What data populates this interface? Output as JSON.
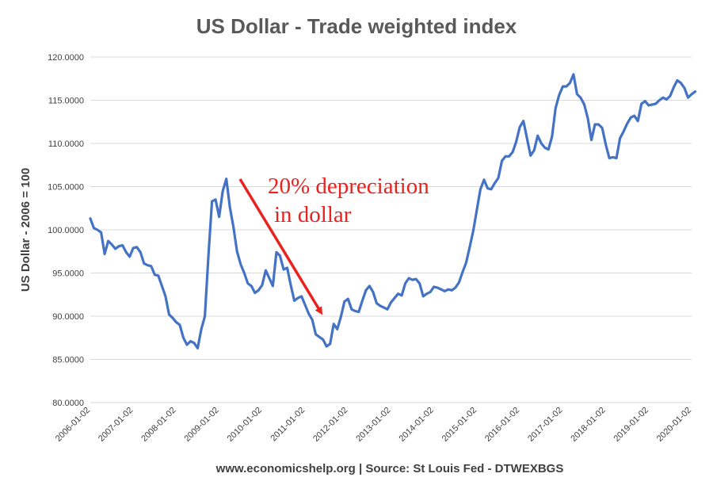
{
  "chart_data": {
    "type": "line",
    "title": "US Dollar - Trade weighted index",
    "ylabel": "US Dollar - 2006 = 100",
    "xlabel": "www.economicshelp.org | Source: St Louis Fed - DTWEXBGS",
    "ylim": [
      80,
      120
    ],
    "yticks": [
      "80.0000",
      "85.0000",
      "90.0000",
      "95.0000",
      "100.0000",
      "105.0000",
      "110.0000",
      "115.0000",
      "120.0000"
    ],
    "xticks": [
      "2006-01-02",
      "2007-01-02",
      "2008-01-02",
      "2009-01-02",
      "2010-01-02",
      "2011-01-02",
      "2012-01-02",
      "2013-01-02",
      "2014-01-02",
      "2015-01-02",
      "2016-01-02",
      "2017-01-02",
      "2018-01-02",
      "2019-01-02",
      "2020-01-02"
    ],
    "grid": true,
    "line_color": "#4472c4",
    "annotation": {
      "lines": [
        "20% depreciation",
        "in dollar"
      ],
      "color": "#e8231f"
    },
    "series": [
      {
        "x": [
          "2006-01",
          "2006-02",
          "2006-03",
          "2006-04",
          "2006-05",
          "2006-06",
          "2006-07",
          "2006-08",
          "2006-09",
          "2006-10",
          "2006-11",
          "2006-12",
          "2007-01",
          "2007-02",
          "2007-03",
          "2007-04",
          "2007-05",
          "2007-06",
          "2007-07",
          "2007-08",
          "2007-09",
          "2007-10",
          "2007-11",
          "2007-12",
          "2008-01",
          "2008-02",
          "2008-03",
          "2008-04",
          "2008-05",
          "2008-06",
          "2008-07",
          "2008-08",
          "2008-09",
          "2008-10",
          "2008-11",
          "2008-12",
          "2009-01",
          "2009-02",
          "2009-03",
          "2009-04",
          "2009-05",
          "2009-06",
          "2009-07",
          "2009-08",
          "2009-09",
          "2009-10",
          "2009-11",
          "2009-12",
          "2010-01",
          "2010-02",
          "2010-03",
          "2010-04",
          "2010-05",
          "2010-06",
          "2010-07",
          "2010-08",
          "2010-09",
          "2010-10",
          "2010-11",
          "2010-12",
          "2011-01",
          "2011-02",
          "2011-03",
          "2011-04",
          "2011-05",
          "2011-06",
          "2011-07",
          "2011-08",
          "2011-09",
          "2011-10",
          "2011-11",
          "2011-12",
          "2012-01",
          "2012-02",
          "2012-03",
          "2012-04",
          "2012-05",
          "2012-06",
          "2012-07",
          "2012-08",
          "2012-09",
          "2012-10",
          "2012-11",
          "2012-12",
          "2013-01",
          "2013-02",
          "2013-03",
          "2013-04",
          "2013-05",
          "2013-06",
          "2013-07",
          "2013-08",
          "2013-09",
          "2013-10",
          "2013-11",
          "2013-12",
          "2014-01",
          "2014-02",
          "2014-03",
          "2014-04",
          "2014-05",
          "2014-06",
          "2014-07",
          "2014-08",
          "2014-09",
          "2014-10",
          "2014-11",
          "2014-12",
          "2015-01",
          "2015-02",
          "2015-03",
          "2015-04",
          "2015-05",
          "2015-06",
          "2015-07",
          "2015-08",
          "2015-09",
          "2015-10",
          "2015-11",
          "2015-12",
          "2016-01",
          "2016-02",
          "2016-03",
          "2016-04",
          "2016-05",
          "2016-06",
          "2016-07",
          "2016-08",
          "2016-09",
          "2016-10",
          "2016-11",
          "2016-12",
          "2017-01",
          "2017-02",
          "2017-03",
          "2017-04",
          "2017-05",
          "2017-06",
          "2017-07",
          "2017-08",
          "2017-09",
          "2017-10",
          "2017-11",
          "2017-12",
          "2018-01",
          "2018-02",
          "2018-03",
          "2018-04",
          "2018-05",
          "2018-06",
          "2018-07",
          "2018-08",
          "2018-09",
          "2018-10",
          "2018-11",
          "2018-12",
          "2019-01",
          "2019-02",
          "2019-03",
          "2019-04",
          "2019-05",
          "2019-06",
          "2019-07",
          "2019-08",
          "2019-09",
          "2019-10",
          "2019-11",
          "2019-12",
          "2020-01",
          "2020-02"
        ],
        "values": [
          101.3,
          100.2,
          100.0,
          99.7,
          97.2,
          98.7,
          98.3,
          97.8,
          98.1,
          98.2,
          97.4,
          96.9,
          97.9,
          98.0,
          97.4,
          96.1,
          95.9,
          95.8,
          94.8,
          94.7,
          93.5,
          92.3,
          90.2,
          89.8,
          89.3,
          89.0,
          87.5,
          86.7,
          87.1,
          86.9,
          86.3,
          88.5,
          90.0,
          97.0,
          103.3,
          103.5,
          101.5,
          104.5,
          105.9,
          102.6,
          100.3,
          97.5,
          96.0,
          95.0,
          93.8,
          93.5,
          92.7,
          93.0,
          93.6,
          95.3,
          94.4,
          93.5,
          97.4,
          97.0,
          95.4,
          95.6,
          93.6,
          91.8,
          92.1,
          92.3,
          91.3,
          90.3,
          89.6,
          87.9,
          87.6,
          87.3,
          86.5,
          86.8,
          89.1,
          88.5,
          89.9,
          91.7,
          92.0,
          90.8,
          90.6,
          90.5,
          91.8,
          93.0,
          93.5,
          92.8,
          91.5,
          91.2,
          91.0,
          90.8,
          91.6,
          92.1,
          92.6,
          92.4,
          93.8,
          94.4,
          94.2,
          94.3,
          93.8,
          92.3,
          92.6,
          92.8,
          93.4,
          93.3,
          93.1,
          92.9,
          93.1,
          93.0,
          93.3,
          93.9,
          95.1,
          96.2,
          98.0,
          99.9,
          102.3,
          104.7,
          105.8,
          104.8,
          104.7,
          105.4,
          106.0,
          108.0,
          108.5,
          108.5,
          109.0,
          110.2,
          111.9,
          112.6,
          110.6,
          108.6,
          109.2,
          110.9,
          110.0,
          109.5,
          109.3,
          110.8,
          114.1,
          115.6,
          116.6,
          116.6,
          117.0,
          118.0,
          115.7,
          115.3,
          114.5,
          112.9,
          110.4,
          112.2,
          112.2,
          111.8,
          109.9,
          108.3,
          108.4,
          108.3,
          110.6,
          111.4,
          112.3,
          113.0,
          113.2,
          112.6,
          114.6,
          114.9,
          114.4,
          114.5,
          114.6,
          115.0,
          115.3,
          115.1,
          115.5,
          116.5,
          117.3,
          117.0,
          116.4,
          115.3,
          115.7,
          116.0
        ]
      }
    ]
  }
}
